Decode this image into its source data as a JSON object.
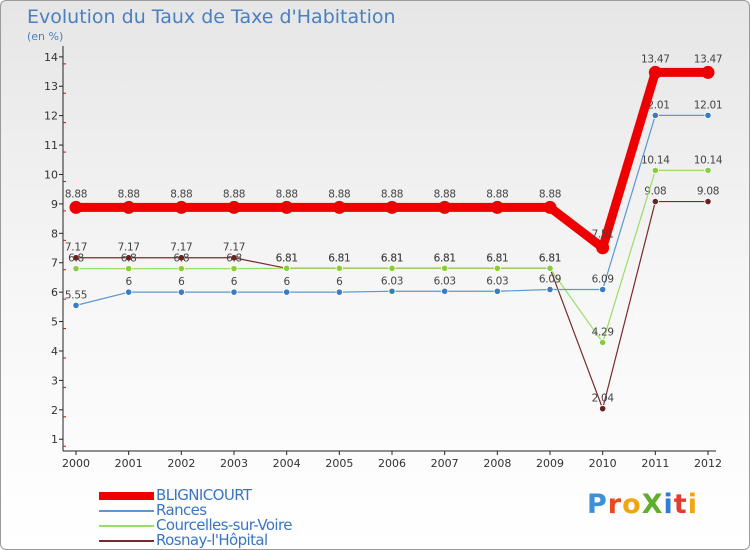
{
  "title": "Evolution du Taux de Taxe d'Habitation",
  "subtitle": "(en %)",
  "logo": {
    "text": "ProXiti",
    "letters": [
      "P",
      "r",
      "o",
      "X",
      "i",
      "t",
      "i"
    ],
    "colors": [
      "#3d8fd6",
      "#e84a1c",
      "#f2a511",
      "#5fae2e",
      "#2f7fd0",
      "#e23d2e",
      "#f2a511"
    ]
  },
  "legend": [
    {
      "label": "BLIGNICOURT",
      "color": "#ee0000"
    },
    {
      "label": "Rances",
      "color": "#5b97d4"
    },
    {
      "label": "Courcelles-sur-Voire",
      "color": "#99dd66"
    },
    {
      "label": "Rosnay-l'Hôpital",
      "color": "#7a2a2a"
    }
  ],
  "chart_data": {
    "type": "line",
    "title": "Evolution du Taux de Taxe d'Habitation",
    "ylabel": "(en %)",
    "xlabel": "",
    "categories": [
      "2000",
      "2001",
      "2002",
      "2003",
      "2004",
      "2005",
      "2006",
      "2007",
      "2008",
      "2009",
      "2010",
      "2011",
      "2012"
    ],
    "yticks": [
      1,
      2,
      3,
      4,
      5,
      6,
      7,
      8,
      9,
      10,
      11,
      12,
      13,
      14
    ],
    "ylim": [
      0.6,
      14.3
    ],
    "grid": false,
    "series": [
      {
        "name": "Rosnay-l'Hôpital",
        "color": "#7a2a2a",
        "point_color": "#6b2020",
        "values": [
          7.17,
          7.17,
          7.17,
          7.17,
          6.81,
          6.81,
          6.81,
          6.81,
          6.81,
          6.81,
          2.04,
          9.08,
          9.08
        ],
        "labels": [
          "7.17",
          "7.17",
          "7.17",
          "7.17",
          "6.81",
          "6.81",
          "6.81",
          "6.81",
          "6.81",
          "6.81",
          "2.04",
          "9.08",
          "9.08"
        ]
      },
      {
        "name": "Courcelles-sur-Voire",
        "color": "#99dd66",
        "point_color": "#88cc44",
        "values": [
          6.8,
          6.8,
          6.8,
          6.8,
          6.81,
          6.81,
          6.81,
          6.81,
          6.81,
          6.81,
          4.29,
          10.14,
          10.14
        ],
        "labels": [
          "6.8",
          "6.8",
          "6.8",
          "6.8",
          "6.81",
          "6.81",
          "6.81",
          "6.81",
          "6.81",
          "6.81",
          "4.29",
          "10.14",
          "10.14"
        ]
      },
      {
        "name": "Rances",
        "color": "#5b97d4",
        "point_color": "#3a7cc4",
        "values": [
          5.55,
          6,
          6,
          6,
          6,
          6,
          6.03,
          6.03,
          6.03,
          6.09,
          6.09,
          12.01,
          12.01
        ],
        "labels": [
          "5.55",
          "6",
          "6",
          "6",
          "6",
          "6",
          "6.03",
          "6.03",
          "6.03",
          "6.09",
          "6.09",
          "12.01",
          "12.01"
        ]
      },
      {
        "name": "BLIGNICOURT",
        "color": "#ee0000",
        "point_color": "#ee0000",
        "values": [
          8.88,
          8.88,
          8.88,
          8.88,
          8.88,
          8.88,
          8.88,
          8.88,
          8.88,
          8.88,
          7.51,
          13.47,
          13.47
        ],
        "labels": [
          "8.88",
          "8.88",
          "8.88",
          "8.88",
          "8.88",
          "8.88",
          "8.88",
          "8.88",
          "8.88",
          "8.88",
          "7.51",
          "13.47",
          "13.47"
        ]
      }
    ]
  }
}
